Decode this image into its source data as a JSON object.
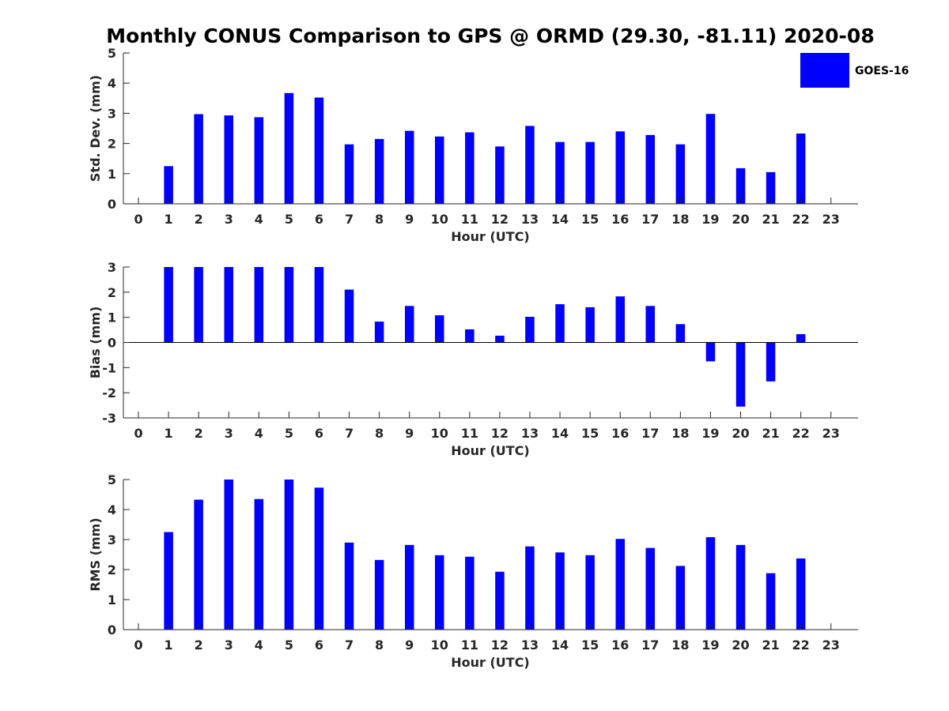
{
  "title": "Monthly CONUS Comparison to GPS @ ORMD (29.30, -81.11) 2020-08",
  "colors": {
    "bar": "#0000ff",
    "axis": "#262626"
  },
  "legend": {
    "label": "GOES-16",
    "placement": "top-right"
  },
  "chart_data": [
    {
      "type": "bar",
      "name": "std-dev",
      "ylabel": "Std. Dev. (mm)",
      "xlabel": "Hour (UTC)",
      "ylim": [
        0,
        5
      ],
      "yticks": [
        0,
        1,
        2,
        3,
        4,
        5
      ],
      "xlim": [
        -0.5,
        23.9
      ],
      "categories": [
        0,
        1,
        2,
        3,
        4,
        5,
        6,
        7,
        8,
        9,
        10,
        11,
        12,
        13,
        14,
        15,
        16,
        17,
        18,
        19,
        20,
        21,
        22,
        23
      ],
      "series": [
        {
          "name": "GOES-16",
          "values": [
            null,
            1.25,
            2.97,
            2.93,
            2.87,
            3.67,
            3.52,
            1.97,
            2.15,
            2.42,
            2.23,
            2.37,
            1.9,
            2.58,
            2.05,
            2.05,
            2.4,
            2.28,
            1.97,
            2.98,
            1.18,
            1.05,
            2.33,
            null
          ]
        }
      ]
    },
    {
      "type": "bar",
      "name": "bias",
      "ylabel": "Bias (mm)",
      "xlabel": "Hour (UTC)",
      "ylim": [
        -3,
        3
      ],
      "yticks": [
        -3,
        -2,
        -1,
        0,
        1,
        2,
        3
      ],
      "xlim": [
        -0.5,
        23.9
      ],
      "categories": [
        0,
        1,
        2,
        3,
        4,
        5,
        6,
        7,
        8,
        9,
        10,
        11,
        12,
        13,
        14,
        15,
        16,
        17,
        18,
        19,
        20,
        21,
        22,
        23
      ],
      "series": [
        {
          "name": "GOES-16",
          "values": [
            null,
            3,
            3,
            3,
            3,
            3,
            3,
            2.1,
            0.83,
            1.45,
            1.08,
            0.52,
            0.27,
            1.02,
            1.52,
            1.4,
            1.83,
            1.45,
            0.73,
            -0.75,
            -2.55,
            -1.55,
            0.33,
            null
          ]
        }
      ]
    },
    {
      "type": "bar",
      "name": "rms",
      "ylabel": "RMS (mm)",
      "xlabel": "Hour (UTC)",
      "ylim": [
        0,
        5
      ],
      "yticks": [
        0,
        1,
        2,
        3,
        4,
        5
      ],
      "xlim": [
        -0.5,
        23.9
      ],
      "categories": [
        0,
        1,
        2,
        3,
        4,
        5,
        6,
        7,
        8,
        9,
        10,
        11,
        12,
        13,
        14,
        15,
        16,
        17,
        18,
        19,
        20,
        21,
        22,
        23
      ],
      "series": [
        {
          "name": "GOES-16",
          "values": [
            null,
            3.25,
            4.33,
            5,
            4.35,
            5,
            4.73,
            2.9,
            2.32,
            2.82,
            2.48,
            2.43,
            1.93,
            2.77,
            2.57,
            2.48,
            3.02,
            2.72,
            2.12,
            3.08,
            2.82,
            1.88,
            2.37,
            null
          ]
        }
      ]
    }
  ]
}
